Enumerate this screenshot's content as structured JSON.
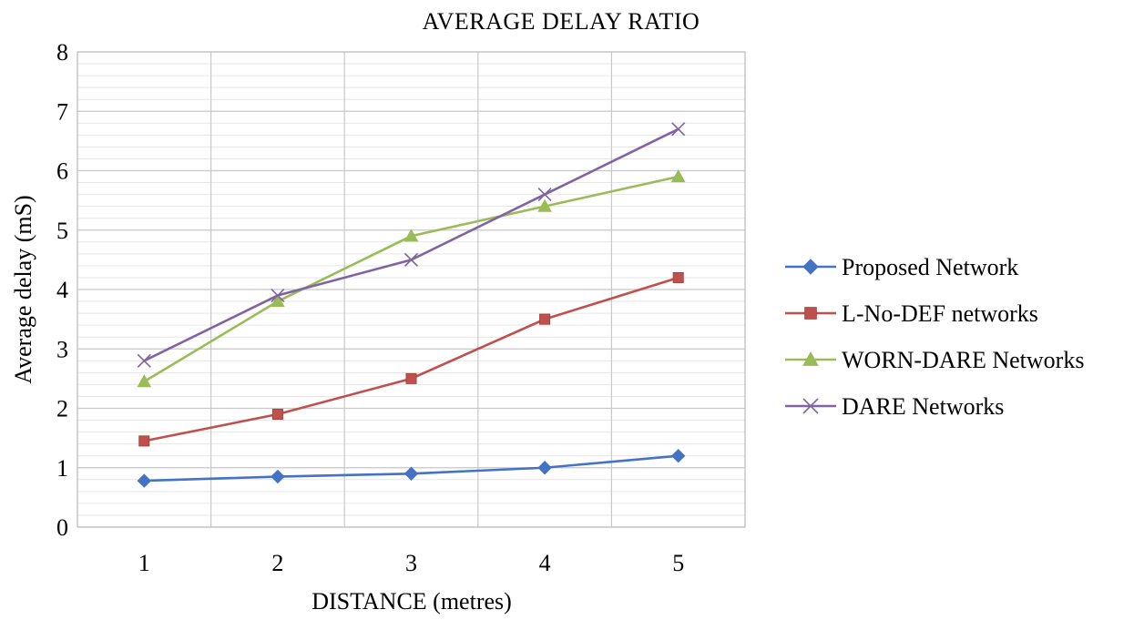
{
  "chart_data": {
    "type": "line",
    "title": "AVERAGE  DELAY RATIO",
    "xlabel": "DISTANCE (metres)",
    "ylabel": "Average delay (mS)",
    "x": [
      1,
      2,
      3,
      4,
      5
    ],
    "x_tick_labels": [
      "1",
      "2",
      "3",
      "4",
      "5"
    ],
    "ylim": [
      0,
      8
    ],
    "y_ticks": [
      0,
      1,
      2,
      3,
      4,
      5,
      6,
      7,
      8
    ],
    "y_tick_labels": [
      "0",
      "1",
      "2",
      "3",
      "4",
      "5",
      "6",
      "7",
      "8"
    ],
    "grid": true,
    "legend_position": "right",
    "series": [
      {
        "name": "Proposed Network",
        "values": [
          0.78,
          0.85,
          0.9,
          1.0,
          1.2
        ],
        "color": "#4472C4",
        "marker": "diamond"
      },
      {
        "name": "L-No-DEF networks",
        "values": [
          1.45,
          1.9,
          2.5,
          3.5,
          4.2
        ],
        "color": "#C0504D",
        "marker": "square"
      },
      {
        "name": "WORN-DARE Networks",
        "values": [
          2.45,
          3.8,
          4.9,
          5.4,
          5.9
        ],
        "color": "#9BBB59",
        "marker": "triangle"
      },
      {
        "name": "DARE Networks",
        "values": [
          2.8,
          3.9,
          4.5,
          5.6,
          6.7
        ],
        "color": "#8064A2",
        "marker": "x"
      }
    ]
  }
}
